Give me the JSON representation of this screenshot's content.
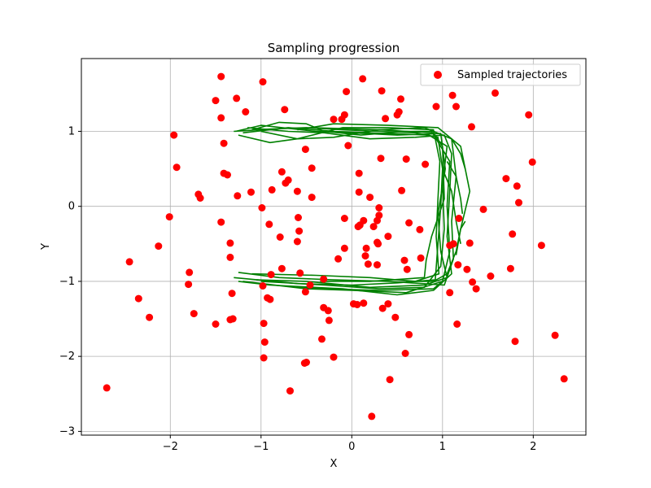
{
  "chart_data": {
    "type": "scatter",
    "title": "Sampling progression",
    "xlabel": "X",
    "ylabel": "Y",
    "xlim": [
      -2.98,
      2.58
    ],
    "ylim": [
      -3.05,
      1.97
    ],
    "xticks": [
      -2,
      -1,
      0,
      1,
      2
    ],
    "yticks": [
      -3,
      -2,
      -1,
      0,
      1
    ],
    "xtick_labels": [
      "−2",
      "−1",
      "0",
      "1",
      "2"
    ],
    "ytick_labels": [
      "−3",
      "−2",
      "−1",
      "0",
      "1"
    ],
    "grid": true,
    "legend": {
      "position": "top-right",
      "entries": [
        "Sampled trajectories"
      ]
    },
    "colors": {
      "points": "#ff0000",
      "paths": "#008000",
      "grid": "#b0b0b0",
      "axes": "#000000"
    },
    "series": [
      {
        "name": "Sampled trajectories",
        "kind": "scatter",
        "points": [
          [
            -2.7,
            -2.42
          ],
          [
            -2.45,
            -0.74
          ],
          [
            -2.35,
            -1.23
          ],
          [
            -2.23,
            -1.48
          ],
          [
            -2.13,
            -0.53
          ],
          [
            -2.01,
            -0.14
          ],
          [
            -1.96,
            0.95
          ],
          [
            -1.93,
            0.52
          ],
          [
            -1.8,
            -1.04
          ],
          [
            -1.79,
            -0.88
          ],
          [
            -1.74,
            -1.43
          ],
          [
            -1.69,
            0.16
          ],
          [
            -1.67,
            0.11
          ],
          [
            -1.5,
            1.41
          ],
          [
            -1.5,
            -1.57
          ],
          [
            -1.44,
            1.73
          ],
          [
            -1.44,
            1.18
          ],
          [
            -1.44,
            -0.21
          ],
          [
            -1.41,
            0.84
          ],
          [
            -1.41,
            0.44
          ],
          [
            -1.37,
            0.42
          ],
          [
            -1.34,
            -0.49
          ],
          [
            -1.34,
            -0.68
          ],
          [
            -1.34,
            -1.51
          ],
          [
            -1.31,
            -1.5
          ],
          [
            -1.32,
            -1.16
          ],
          [
            -1.27,
            1.44
          ],
          [
            -1.26,
            0.14
          ],
          [
            -1.17,
            1.26
          ],
          [
            -1.11,
            0.19
          ],
          [
            -0.99,
            -0.02
          ],
          [
            -0.98,
            1.66
          ],
          [
            -0.98,
            -1.06
          ],
          [
            -0.97,
            -1.56
          ],
          [
            -0.96,
            -1.81
          ],
          [
            -0.97,
            -2.02
          ],
          [
            -0.93,
            -1.22
          ],
          [
            -0.9,
            -1.24
          ],
          [
            -0.91,
            -0.24
          ],
          [
            -0.88,
            0.22
          ],
          [
            -0.89,
            -0.91
          ],
          [
            -0.79,
            -0.41
          ],
          [
            -0.77,
            0.46
          ],
          [
            -0.77,
            -0.83
          ],
          [
            -0.74,
            1.29
          ],
          [
            -0.73,
            0.31
          ],
          [
            -0.7,
            0.35
          ],
          [
            -0.68,
            -2.46
          ],
          [
            -0.6,
            0.2
          ],
          [
            -0.59,
            -0.15
          ],
          [
            -0.6,
            -0.47
          ],
          [
            -0.58,
            -0.33
          ],
          [
            -0.57,
            -0.89
          ],
          [
            -0.51,
            0.76
          ],
          [
            -0.51,
            -1.14
          ],
          [
            -0.52,
            -2.09
          ],
          [
            -0.5,
            -2.08
          ],
          [
            -0.44,
            0.12
          ],
          [
            -0.44,
            0.51
          ],
          [
            -0.46,
            -1.05
          ],
          [
            -0.33,
            -1.77
          ],
          [
            -0.31,
            -0.97
          ],
          [
            -0.31,
            -1.35
          ],
          [
            -0.26,
            -1.39
          ],
          [
            -0.25,
            -1.52
          ],
          [
            -0.2,
            -2.01
          ],
          [
            -0.2,
            1.16
          ],
          [
            -0.15,
            -0.7
          ],
          [
            -0.11,
            1.16
          ],
          [
            -0.08,
            -0.16
          ],
          [
            -0.08,
            1.22
          ],
          [
            -0.06,
            1.53
          ],
          [
            -0.04,
            0.81
          ],
          [
            -0.08,
            -0.56
          ],
          [
            0.02,
            -1.3
          ],
          [
            0.06,
            -1.31
          ],
          [
            0.07,
            -0.27
          ],
          [
            0.08,
            0.19
          ],
          [
            0.09,
            -0.25
          ],
          [
            0.08,
            0.44
          ],
          [
            0.12,
            1.7
          ],
          [
            0.13,
            -0.19
          ],
          [
            0.13,
            -1.29
          ],
          [
            0.16,
            -0.56
          ],
          [
            0.15,
            -0.66
          ],
          [
            0.18,
            -0.77
          ],
          [
            0.2,
            0.12
          ],
          [
            0.22,
            -2.8
          ],
          [
            0.24,
            -0.27
          ],
          [
            0.28,
            -0.19
          ],
          [
            0.28,
            -0.78
          ],
          [
            0.28,
            -0.48
          ],
          [
            0.3,
            -0.12
          ],
          [
            0.29,
            -0.5
          ],
          [
            0.3,
            -0.02
          ],
          [
            0.32,
            0.64
          ],
          [
            0.33,
            1.54
          ],
          [
            0.34,
            -1.36
          ],
          [
            0.37,
            1.17
          ],
          [
            0.4,
            -1.3
          ],
          [
            0.4,
            -0.4
          ],
          [
            0.42,
            -2.31
          ],
          [
            0.48,
            -1.48
          ],
          [
            0.5,
            1.22
          ],
          [
            0.52,
            1.26
          ],
          [
            0.54,
            1.43
          ],
          [
            0.55,
            0.21
          ],
          [
            0.58,
            -0.72
          ],
          [
            0.59,
            -1.96
          ],
          [
            0.6,
            0.63
          ],
          [
            0.61,
            -0.84
          ],
          [
            0.63,
            -0.22
          ],
          [
            0.63,
            -1.71
          ],
          [
            0.75,
            -0.31
          ],
          [
            0.76,
            -0.69
          ],
          [
            0.81,
            0.56
          ],
          [
            0.93,
            1.33
          ],
          [
            1.08,
            -1.15
          ],
          [
            1.08,
            -0.52
          ],
          [
            1.11,
            1.48
          ],
          [
            1.12,
            -0.5
          ],
          [
            1.15,
            1.33
          ],
          [
            1.16,
            -1.57
          ],
          [
            1.17,
            -0.78
          ],
          [
            1.18,
            -0.16
          ],
          [
            1.27,
            -0.84
          ],
          [
            1.3,
            -0.49
          ],
          [
            1.32,
            1.06
          ],
          [
            1.33,
            -1.01
          ],
          [
            1.37,
            -1.1
          ],
          [
            1.45,
            -0.04
          ],
          [
            1.53,
            -0.93
          ],
          [
            1.58,
            1.51
          ],
          [
            1.7,
            0.37
          ],
          [
            1.75,
            -0.83
          ],
          [
            1.77,
            -0.37
          ],
          [
            1.8,
            -1.8
          ],
          [
            1.82,
            0.27
          ],
          [
            1.84,
            0.05
          ],
          [
            1.95,
            1.22
          ],
          [
            1.99,
            0.59
          ],
          [
            2.09,
            -0.52
          ],
          [
            2.24,
            -1.72
          ],
          [
            2.34,
            -2.3
          ]
        ]
      },
      {
        "name": "",
        "kind": "paths",
        "paths": [
          [
            [
              -1.3,
              1.0
            ],
            [
              -0.9,
              1.03
            ],
            [
              -0.5,
              1.05
            ],
            [
              -0.1,
              1.02
            ],
            [
              0.3,
              1.0
            ],
            [
              0.7,
              0.98
            ],
            [
              0.95,
              0.92
            ],
            [
              1.0,
              0.5
            ],
            [
              0.98,
              0.0
            ],
            [
              0.95,
              -0.5
            ],
            [
              0.92,
              -0.98
            ],
            [
              0.5,
              -1.02
            ],
            [
              0.0,
              -1.05
            ],
            [
              -0.6,
              -1.03
            ],
            [
              -1.3,
              -0.95
            ]
          ],
          [
            [
              -1.2,
              0.98
            ],
            [
              -0.7,
              1.05
            ],
            [
              -0.2,
              1.0
            ],
            [
              0.4,
              0.97
            ],
            [
              0.85,
              0.95
            ],
            [
              1.05,
              0.8
            ],
            [
              1.0,
              0.3
            ],
            [
              1.02,
              -0.3
            ],
            [
              0.98,
              -0.8
            ],
            [
              0.8,
              -1.08
            ],
            [
              0.3,
              -1.1
            ],
            [
              -0.3,
              -1.05
            ],
            [
              -1.0,
              -1.0
            ]
          ],
          [
            [
              -1.1,
              1.02
            ],
            [
              -0.8,
              1.12
            ],
            [
              -0.5,
              1.1
            ],
            [
              -0.3,
              1.0
            ],
            [
              0.1,
              0.95
            ],
            [
              0.6,
              1.0
            ],
            [
              0.88,
              1.0
            ],
            [
              1.08,
              0.6
            ],
            [
              1.05,
              0.0
            ],
            [
              1.08,
              -0.6
            ],
            [
              1.0,
              -1.0
            ],
            [
              0.6,
              -1.15
            ],
            [
              0.0,
              -1.12
            ],
            [
              -0.5,
              -1.1
            ],
            [
              -1.2,
              -1.0
            ]
          ],
          [
            [
              -1.0,
              1.0
            ],
            [
              -0.6,
              0.9
            ],
            [
              -0.2,
              0.92
            ],
            [
              0.3,
              1.02
            ],
            [
              0.8,
              1.05
            ],
            [
              1.1,
              0.9
            ],
            [
              1.15,
              0.4
            ],
            [
              1.1,
              -0.2
            ],
            [
              1.12,
              -0.7
            ],
            [
              1.02,
              -1.05
            ],
            [
              0.4,
              -1.0
            ],
            [
              -0.2,
              -0.98
            ],
            [
              -0.8,
              -0.95
            ],
            [
              -1.25,
              -0.88
            ]
          ],
          [
            [
              -1.25,
              0.95
            ],
            [
              -0.9,
              0.85
            ],
            [
              -0.6,
              0.9
            ],
            [
              -0.1,
              1.05
            ],
            [
              0.4,
              1.05
            ],
            [
              0.9,
              1.02
            ],
            [
              0.97,
              0.6
            ],
            [
              0.95,
              0.1
            ],
            [
              0.93,
              -0.4
            ],
            [
              0.96,
              -0.9
            ],
            [
              0.7,
              -1.0
            ],
            [
              0.2,
              -0.95
            ],
            [
              -0.4,
              -0.92
            ],
            [
              -1.1,
              -0.9
            ]
          ],
          [
            [
              -1.15,
              1.05
            ],
            [
              -0.7,
              1.0
            ],
            [
              -0.3,
              0.98
            ],
            [
              0.2,
              0.9
            ],
            [
              0.7,
              0.92
            ],
            [
              1.02,
              0.95
            ],
            [
              1.1,
              0.7
            ],
            [
              1.08,
              0.2
            ],
            [
              1.05,
              -0.4
            ],
            [
              1.1,
              -0.9
            ],
            [
              0.9,
              -1.12
            ],
            [
              0.5,
              -1.18
            ],
            [
              -0.1,
              -1.1
            ],
            [
              -0.9,
              -1.05
            ],
            [
              -1.25,
              -1.0
            ]
          ],
          [
            [
              -1.28,
              1.0
            ],
            [
              -1.0,
              1.08
            ],
            [
              -0.4,
              1.0
            ],
            [
              0.0,
              0.98
            ],
            [
              0.5,
              0.95
            ],
            [
              0.98,
              0.97
            ],
            [
              1.03,
              0.5
            ],
            [
              0.95,
              -0.1
            ],
            [
              0.98,
              -0.6
            ],
            [
              1.05,
              -0.95
            ],
            [
              0.8,
              -1.05
            ],
            [
              0.2,
              -1.08
            ],
            [
              -0.5,
              -1.0
            ],
            [
              -1.05,
              -0.98
            ]
          ],
          [
            [
              -0.6,
              1.02
            ],
            [
              -0.2,
              1.1
            ],
            [
              0.4,
              1.08
            ],
            [
              0.95,
              1.05
            ],
            [
              1.2,
              0.8
            ],
            [
              1.3,
              0.2
            ],
            [
              1.2,
              -0.3
            ],
            [
              1.15,
              -0.65
            ]
          ],
          [
            [
              -0.45,
              1.05
            ],
            [
              0.3,
              1.02
            ],
            [
              0.9,
              0.98
            ],
            [
              1.0,
              0.8
            ],
            [
              1.02,
              0.1
            ],
            [
              0.88,
              -0.4
            ],
            [
              0.82,
              -0.72
            ],
            [
              0.8,
              -0.95
            ],
            [
              0.2,
              -1.0
            ],
            [
              -0.35,
              -1.0
            ]
          ],
          [
            [
              0.6,
              -1.0
            ],
            [
              0.9,
              -1.0
            ],
            [
              1.05,
              -0.9
            ],
            [
              1.15,
              -0.6
            ],
            [
              1.2,
              -0.3
            ],
            [
              1.25,
              -0.2
            ]
          ],
          [
            [
              1.05,
              0.6
            ],
            [
              1.15,
              0.4
            ],
            [
              1.2,
              0.1
            ],
            [
              1.22,
              -0.1
            ]
          ],
          [
            [
              1.0,
              0.5
            ],
            [
              1.1,
              0.2
            ],
            [
              1.15,
              -0.2
            ],
            [
              1.2,
              -0.5
            ]
          ],
          [
            [
              1.1,
              0.9
            ],
            [
              1.2,
              0.7
            ],
            [
              1.25,
              0.5
            ]
          ],
          [
            [
              -0.6,
              -1.08
            ],
            [
              -0.3,
              -1.1
            ],
            [
              0.3,
              -1.12
            ],
            [
              0.9,
              -1.1
            ],
            [
              1.0,
              -1.0
            ]
          ]
        ]
      }
    ]
  }
}
